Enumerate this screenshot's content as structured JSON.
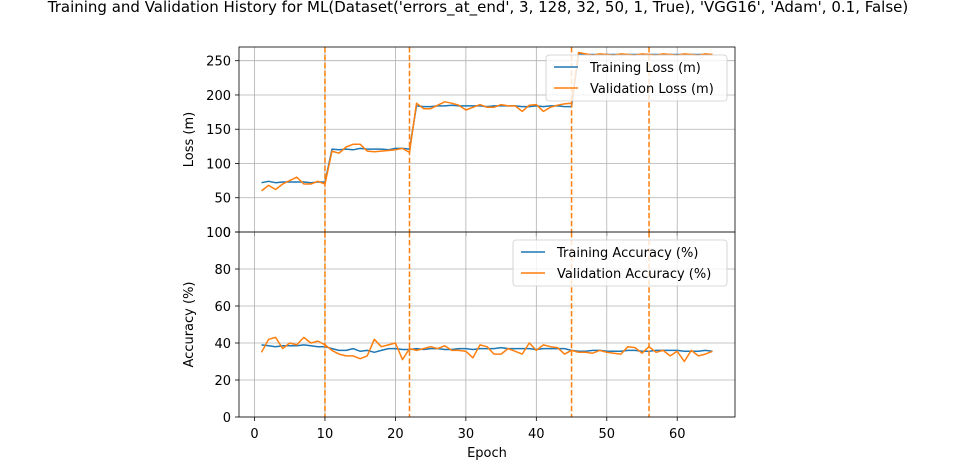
{
  "figure_title": "Training and Validation History for ML(Dataset('errors_at_end', 3, 128, 32, 50, 1, True), 'VGG16', 'Adam', 0.1, False)",
  "chart_data": [
    {
      "type": "line",
      "title": "",
      "xlabel": "",
      "ylabel": "Loss (m)",
      "xlim": [
        -2.2,
        68.2
      ],
      "ylim": [
        0,
        270
      ],
      "yticks": [
        0,
        50,
        100,
        150,
        200,
        250
      ],
      "xticks_visible": false,
      "grid": true,
      "legend": "top-right",
      "series": [
        {
          "name": "Training Loss (m)",
          "color": "#1f77b4",
          "x": [
            1,
            2,
            3,
            4,
            5,
            6,
            7,
            8,
            9,
            10,
            11,
            12,
            13,
            14,
            15,
            16,
            17,
            18,
            19,
            20,
            21,
            22,
            23,
            24,
            25,
            26,
            27,
            28,
            29,
            30,
            31,
            32,
            33,
            34,
            35,
            36,
            37,
            38,
            39,
            40,
            41,
            42,
            43,
            44,
            45,
            46,
            47,
            48,
            49,
            50,
            51,
            52,
            53,
            54,
            55,
            56,
            57,
            58,
            59,
            60,
            61,
            62,
            63,
            64,
            65
          ],
          "values": [
            72,
            74,
            72,
            73,
            73,
            73,
            73,
            72,
            73,
            73,
            121,
            120,
            121,
            120,
            122,
            121,
            121,
            121,
            120,
            122,
            122,
            121,
            184,
            183,
            183,
            184,
            184,
            185,
            184,
            184,
            184,
            184,
            183,
            184,
            184,
            184,
            184,
            183,
            183,
            184,
            183,
            184,
            184,
            183,
            183,
            260,
            259,
            259,
            259,
            259,
            259,
            259,
            259,
            259,
            259,
            259,
            259,
            259,
            259,
            259,
            259,
            259,
            259,
            259,
            259
          ]
        },
        {
          "name": "Validation Loss (m)",
          "color": "#ff7f0e",
          "x": [
            1,
            2,
            3,
            4,
            5,
            6,
            7,
            8,
            9,
            10,
            11,
            12,
            13,
            14,
            15,
            16,
            17,
            18,
            19,
            20,
            21,
            22,
            23,
            24,
            25,
            26,
            27,
            28,
            29,
            30,
            31,
            32,
            33,
            34,
            35,
            36,
            37,
            38,
            39,
            40,
            41,
            42,
            43,
            44,
            45,
            46,
            47,
            48,
            49,
            50,
            51,
            52,
            53,
            54,
            55,
            56,
            57,
            58,
            59,
            60,
            61,
            62,
            63,
            64,
            65
          ],
          "values": [
            60,
            68,
            62,
            70,
            75,
            80,
            70,
            70,
            74,
            70,
            118,
            115,
            124,
            128,
            128,
            118,
            117,
            118,
            119,
            120,
            122,
            116,
            188,
            180,
            180,
            185,
            190,
            188,
            185,
            178,
            182,
            186,
            182,
            182,
            186,
            184,
            184,
            176,
            185,
            186,
            176,
            182,
            185,
            187,
            188,
            262,
            260,
            258,
            260,
            259,
            258,
            260,
            259,
            258,
            260,
            259,
            258,
            260,
            259,
            258,
            260,
            259,
            258,
            260,
            259
          ]
        }
      ]
    },
    {
      "type": "line",
      "title": "",
      "xlabel": "Epoch",
      "ylabel": "Accuracy (%)",
      "xlim": [
        -2.2,
        68.2
      ],
      "ylim": [
        0,
        100
      ],
      "yticks": [
        0,
        20,
        40,
        60,
        80,
        100
      ],
      "xticks": [
        0,
        10,
        20,
        30,
        40,
        50,
        60
      ],
      "grid": true,
      "legend": "top-right",
      "series": [
        {
          "name": "Training Accuracy (%)",
          "color": "#1f77b4",
          "x": [
            1,
            2,
            3,
            4,
            5,
            6,
            7,
            8,
            9,
            10,
            11,
            12,
            13,
            14,
            15,
            16,
            17,
            18,
            19,
            20,
            21,
            22,
            23,
            24,
            25,
            26,
            27,
            28,
            29,
            30,
            31,
            32,
            33,
            34,
            35,
            36,
            37,
            38,
            39,
            40,
            41,
            42,
            43,
            44,
            45,
            46,
            47,
            48,
            49,
            50,
            51,
            52,
            53,
            54,
            55,
            56,
            57,
            58,
            59,
            60,
            61,
            62,
            63,
            64,
            65
          ],
          "values": [
            39,
            38.5,
            38,
            38.5,
            38.5,
            38.5,
            39,
            38.5,
            38,
            38,
            37,
            36,
            36,
            37,
            35.5,
            36,
            35,
            36,
            37,
            37,
            36.5,
            36.5,
            37,
            36.5,
            37,
            37,
            36.5,
            36.5,
            37,
            37,
            36.5,
            37,
            37,
            37,
            37.5,
            37,
            37,
            37,
            37,
            36.5,
            37,
            37,
            37,
            37,
            36,
            35.5,
            35.5,
            36,
            36,
            35.5,
            35.5,
            35.5,
            36,
            36,
            35.5,
            35.5,
            36,
            36,
            36,
            36,
            35.5,
            35.5,
            35.5,
            36,
            35.5
          ]
        },
        {
          "name": "Validation Accuracy (%)",
          "color": "#ff7f0e",
          "x": [
            1,
            2,
            3,
            4,
            5,
            6,
            7,
            8,
            9,
            10,
            11,
            12,
            13,
            14,
            15,
            16,
            17,
            18,
            19,
            20,
            21,
            22,
            23,
            24,
            25,
            26,
            27,
            28,
            29,
            30,
            31,
            32,
            33,
            34,
            35,
            36,
            37,
            38,
            39,
            40,
            41,
            42,
            43,
            44,
            45,
            46,
            47,
            48,
            49,
            50,
            51,
            52,
            53,
            54,
            55,
            56,
            57,
            58,
            59,
            60,
            61,
            62,
            63,
            64,
            65
          ],
          "values": [
            35,
            42,
            43,
            37,
            40,
            39,
            43,
            40,
            41,
            39,
            36,
            34,
            33,
            33,
            31.5,
            33,
            42,
            38,
            39,
            40,
            31,
            37,
            36,
            37,
            38,
            37,
            38.5,
            36,
            36,
            35.5,
            32,
            39,
            38,
            34,
            34,
            37,
            35.5,
            34,
            40,
            36,
            39,
            38,
            37.5,
            34,
            36,
            35,
            35,
            34.5,
            36,
            35,
            34.5,
            34,
            38,
            37.5,
            34.5,
            38,
            35,
            36,
            33,
            35.5,
            30,
            36,
            33,
            34,
            35.5
          ]
        }
      ]
    }
  ],
  "vlines": [
    10,
    22,
    45,
    56
  ],
  "vline_color": "#ff7f0e"
}
